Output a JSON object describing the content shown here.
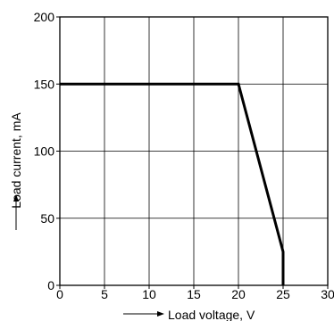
{
  "chart_data": {
    "type": "line",
    "xlabel": "Load voltage, V",
    "ylabel": "Load current, mA",
    "xlim": [
      0,
      30
    ],
    "ylim": [
      0,
      200
    ],
    "xticks": [
      "0",
      "5",
      "10",
      "15",
      "20",
      "25",
      "30"
    ],
    "yticks": [
      "0",
      "50",
      "100",
      "150",
      "200"
    ],
    "grid": true,
    "series": [
      {
        "x": [
          0,
          20,
          25,
          25
        ],
        "y": [
          150,
          150,
          25,
          0
        ],
        "color": "#000000"
      }
    ]
  }
}
